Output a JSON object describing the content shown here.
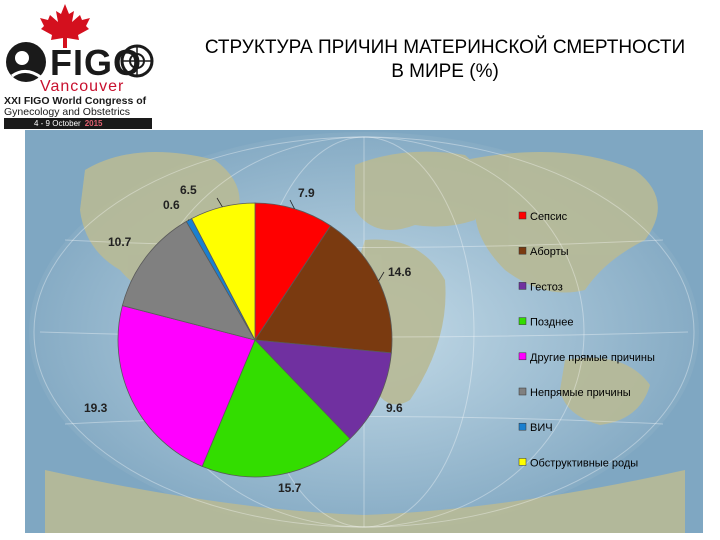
{
  "logo": {
    "brand": "FIGO",
    "city": "Vancouver",
    "line1": "XXI FIGO World Congress of",
    "line2": "Gynecology and Obstetrics",
    "dates": "4 - 9 October",
    "year": "2015"
  },
  "title": {
    "line1": "СТРУКТУРА ПРИЧИН МАТЕРИНСКОЙ СМЕРТНОСТИ",
    "line2": "В МИРЕ (%)"
  },
  "chart_data": {
    "type": "pie",
    "start_angle_deg": 0,
    "direction": "clockwise",
    "legend_position": "right",
    "categories": [
      "Сепсис",
      "Аборты",
      "Гестоз",
      "Позднее",
      "Другие прямые причины",
      "Непрямые причины",
      "ВИЧ",
      "Обструктивные роды"
    ],
    "values": [
      7.9,
      14.6,
      9.6,
      15.7,
      19.3,
      10.7,
      0.6,
      6.5
    ],
    "data_labels": [
      "7.9",
      "14.6",
      "9.6",
      "15.7",
      "19.3",
      "10.7",
      "0.6",
      "6.5"
    ],
    "colors": [
      "#ff0000",
      "#7a3a10",
      "#7030a0",
      "#33dd00",
      "#ff00ff",
      "#808080",
      "#1a80d0",
      "#ffff00"
    ]
  }
}
